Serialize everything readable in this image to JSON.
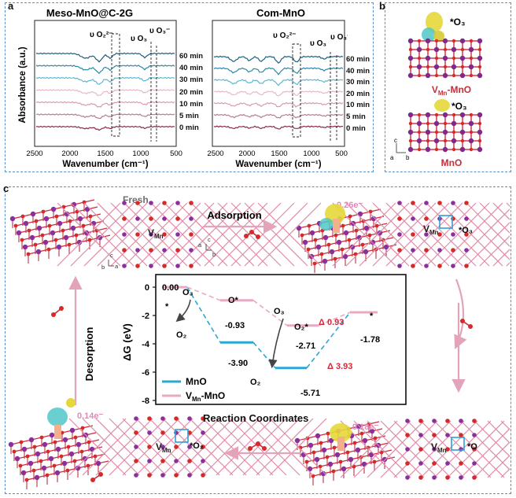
{
  "panels": {
    "a": "a",
    "b": "b",
    "c": "c"
  },
  "panel_a": {
    "left": {
      "title": "Meso-MnO@C-2G",
      "times": [
        "60 min",
        "40 min",
        "30 min",
        "20 min",
        "10 min",
        "5 min",
        "0 min"
      ],
      "ann_o2": "υ O₂²⁻",
      "ann_o3a": "υ O₃",
      "ann_o3b": "υ O₃⁻",
      "xlabel": "Wavenumber (cm⁻¹)",
      "ylabel": "Absorbance (a.u.)",
      "ticks": [
        "2500",
        "2000",
        "1500",
        "1000",
        "500"
      ]
    },
    "right": {
      "title": "Com-MnO",
      "times": [
        "60 min",
        "40 min",
        "30 min",
        "20 min",
        "10 min",
        "5 min",
        "0 min"
      ],
      "ann_o2": "υ O₂²⁻",
      "ann_o3a": "υ O₃",
      "ann_o3b": "υ O₃⁻",
      "xlabel": "Wavenumber (cm⁻¹)",
      "ticks": [
        "2500",
        "2000",
        "1500",
        "1000",
        "500"
      ]
    },
    "curve_colors": [
      "#1b5f7e",
      "#2d87a8",
      "#5ab7d6",
      "#e7b9c6",
      "#d79cae",
      "#b97a93",
      "#8a2b49"
    ]
  },
  "panel_b": {
    "o3_label_1": "*O₃",
    "model_1": "V",
    "model_1_sub": "Mn",
    "model_1_suffix": "-MnO",
    "o3_label_2": "*O₃",
    "model_2": "MnO",
    "axes": [
      "c",
      "a",
      "b"
    ]
  },
  "panel_c": {
    "fresh": "Fresh",
    "adsorption": "Adsorption",
    "desorption": "Desorption",
    "vmn": "V",
    "vmn_sub": "Mn",
    "charge_1": "0.26e⁻",
    "charge_2": "0.18e⁻",
    "charge_3": "0.14e⁻",
    "site_o3": "*O₃",
    "site_o": "*O",
    "site_o2": "*O₂",
    "axes": [
      "c",
      "a",
      "b"
    ],
    "axes2": [
      "c",
      "b",
      "a"
    ],
    "diagram": {
      "ylabel": "ΔG (eV)",
      "xlabel": "Reaction Coordinates",
      "yticks": [
        "0",
        "-2",
        "-4",
        "-6",
        "-8"
      ],
      "legend": [
        {
          "name": "MnO",
          "color": "#2ba7d4"
        },
        {
          "name_main": "V",
          "name_sub": "Mn",
          "name_rest": "-MnO",
          "color": "#e8a9c3"
        }
      ],
      "labels": {
        "v0": "0.00",
        "star0": "*",
        "o3_a": "O₃",
        "o2_a": "O₂",
        "o_star": "O*",
        "v1": "-0.93",
        "v2": "-3.90",
        "o3_b": "O₃",
        "o2_b": "O₂",
        "o2_star": "O₂*",
        "v3": "-2.71",
        "v4": "-5.71",
        "star_end": "*",
        "v5": "-1.78",
        "delta1": "Δ 0.93",
        "delta2": "Δ 3.93"
      }
    }
  },
  "chart_data": {
    "type": "line",
    "title": "",
    "xlabel": "Reaction Coordinates",
    "ylabel": "ΔG (eV)",
    "ylim": [
      -8,
      1
    ],
    "series": [
      {
        "name": "MnO",
        "values": [
          0.0,
          -3.9,
          -5.71
        ]
      },
      {
        "name": "VMn-MnO",
        "values": [
          0.0,
          -0.93,
          -2.71,
          -1.78
        ]
      }
    ]
  }
}
